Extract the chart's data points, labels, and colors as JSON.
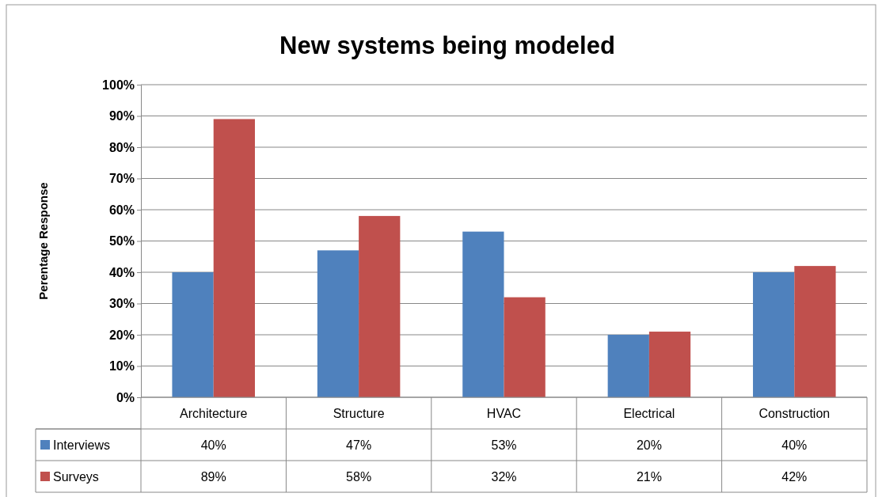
{
  "chart_data": {
    "type": "bar",
    "title": "New systems being modeled",
    "ylabel": "Perentage Response",
    "categories": [
      "Architecture",
      "Structure",
      "HVAC",
      "Electrical",
      "Construction"
    ],
    "series": [
      {
        "name": "Interviews",
        "color": "#4f81bd",
        "values": [
          40,
          47,
          53,
          20,
          40
        ],
        "value_labels": [
          "40%",
          "47%",
          "53%",
          "20%",
          "40%"
        ]
      },
      {
        "name": "Surveys",
        "color": "#c0504d",
        "values": [
          89,
          58,
          32,
          21,
          42
        ],
        "value_labels": [
          "89%",
          "58%",
          "32%",
          "21%",
          "42%"
        ]
      }
    ],
    "ylim": [
      0,
      100
    ],
    "yticks": [
      {
        "value": 0,
        "label": "0%"
      },
      {
        "value": 10,
        "label": "10%"
      },
      {
        "value": 20,
        "label": "20%"
      },
      {
        "value": 30,
        "label": "30%"
      },
      {
        "value": 40,
        "label": "40%"
      },
      {
        "value": 50,
        "label": "50%"
      },
      {
        "value": 60,
        "label": "60%"
      },
      {
        "value": 70,
        "label": "70%"
      },
      {
        "value": 80,
        "label": "80%"
      },
      {
        "value": 90,
        "label": "90%"
      },
      {
        "value": 100,
        "label": "100%"
      }
    ],
    "grid": "y",
    "legend": "bottom"
  }
}
